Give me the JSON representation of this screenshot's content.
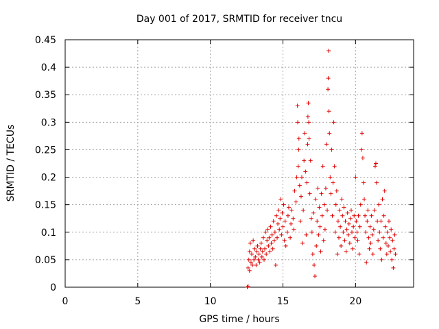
{
  "chart_data": {
    "type": "scatter",
    "title": "Day 001 of 2017, SRMTID for receiver tncu",
    "xlabel": "GPS time / hours",
    "ylabel": "SRMTID / TECUs",
    "xlim": [
      0,
      24
    ],
    "ylim": [
      0,
      0.45
    ],
    "grid": true,
    "marker": "+",
    "color": "#e00000",
    "x_ticks": [
      {
        "value": 0,
        "label": "0"
      },
      {
        "value": 5,
        "label": "5"
      },
      {
        "value": 10,
        "label": "10"
      },
      {
        "value": 15,
        "label": "15"
      },
      {
        "value": 20,
        "label": "20"
      }
    ],
    "y_ticks": [
      {
        "value": 0,
        "label": "0"
      },
      {
        "value": 0.05,
        "label": "0.05"
      },
      {
        "value": 0.1,
        "label": "0.1"
      },
      {
        "value": 0.15,
        "label": "0.15"
      },
      {
        "value": 0.2,
        "label": "0.2"
      },
      {
        "value": 0.25,
        "label": "0.25"
      },
      {
        "value": 0.3,
        "label": "0.3"
      },
      {
        "value": 0.35,
        "label": "0.35"
      },
      {
        "value": 0.4,
        "label": "0.4"
      },
      {
        "value": 0.45,
        "label": "0.45"
      }
    ],
    "points": [
      [
        12.55,
        0.0
      ],
      [
        12.6,
        0.002
      ],
      [
        12.6,
        0.035
      ],
      [
        12.65,
        0.05
      ],
      [
        12.7,
        0.065
      ],
      [
        12.7,
        0.03
      ],
      [
        12.75,
        0.08
      ],
      [
        12.8,
        0.045
      ],
      [
        12.85,
        0.06
      ],
      [
        12.9,
        0.04
      ],
      [
        12.95,
        0.085
      ],
      [
        13.0,
        0.05
      ],
      [
        13.05,
        0.07
      ],
      [
        13.1,
        0.055
      ],
      [
        13.15,
        0.04
      ],
      [
        13.2,
        0.065
      ],
      [
        13.25,
        0.075
      ],
      [
        13.3,
        0.05
      ],
      [
        13.35,
        0.06
      ],
      [
        13.4,
        0.045
      ],
      [
        13.45,
        0.07
      ],
      [
        13.5,
        0.08
      ],
      [
        13.55,
        0.055
      ],
      [
        13.6,
        0.065
      ],
      [
        13.65,
        0.09
      ],
      [
        13.7,
        0.05
      ],
      [
        13.75,
        0.07
      ],
      [
        13.8,
        0.1
      ],
      [
        13.85,
        0.06
      ],
      [
        13.9,
        0.085
      ],
      [
        13.95,
        0.105
      ],
      [
        14.0,
        0.075
      ],
      [
        14.05,
        0.09
      ],
      [
        14.1,
        0.065
      ],
      [
        14.15,
        0.11
      ],
      [
        14.2,
        0.08
      ],
      [
        14.25,
        0.095
      ],
      [
        14.3,
        0.07
      ],
      [
        14.35,
        0.12
      ],
      [
        14.4,
        0.085
      ],
      [
        14.45,
        0.1
      ],
      [
        14.5,
        0.04
      ],
      [
        14.55,
        0.13
      ],
      [
        14.6,
        0.09
      ],
      [
        14.65,
        0.115
      ],
      [
        14.7,
        0.14
      ],
      [
        14.75,
        0.105
      ],
      [
        14.8,
        0.125
      ],
      [
        14.85,
        0.16
      ],
      [
        14.9,
        0.095
      ],
      [
        14.95,
        0.135
      ],
      [
        15.0,
        0.11
      ],
      [
        15.05,
        0.15
      ],
      [
        15.1,
        0.085
      ],
      [
        15.15,
        0.12
      ],
      [
        15.2,
        0.075
      ],
      [
        15.3,
        0.1
      ],
      [
        15.35,
        0.13
      ],
      [
        15.4,
        0.145
      ],
      [
        15.5,
        0.09
      ],
      [
        15.55,
        0.115
      ],
      [
        15.6,
        0.14
      ],
      [
        15.7,
        0.125
      ],
      [
        15.75,
        0.105
      ],
      [
        15.8,
        0.175
      ],
      [
        15.9,
        0.155
      ],
      [
        15.95,
        0.2
      ],
      [
        16.0,
        0.33
      ],
      [
        16.02,
        0.3
      ],
      [
        16.05,
        0.22
      ],
      [
        16.08,
        0.25
      ],
      [
        16.1,
        0.27
      ],
      [
        16.15,
        0.185
      ],
      [
        16.2,
        0.12
      ],
      [
        16.25,
        0.165
      ],
      [
        16.3,
        0.2
      ],
      [
        16.35,
        0.08
      ],
      [
        16.4,
        0.14
      ],
      [
        16.45,
        0.23
      ],
      [
        16.5,
        0.28
      ],
      [
        16.55,
        0.21
      ],
      [
        16.6,
        0.095
      ],
      [
        16.65,
        0.19
      ],
      [
        16.7,
        0.26
      ],
      [
        16.72,
        0.31
      ],
      [
        16.75,
        0.335
      ],
      [
        16.78,
        0.3
      ],
      [
        16.8,
        0.27
      ],
      [
        16.85,
        0.17
      ],
      [
        16.9,
        0.23
      ],
      [
        16.95,
        0.125
      ],
      [
        17.0,
        0.1
      ],
      [
        17.05,
        0.06
      ],
      [
        17.1,
        0.135
      ],
      [
        17.15,
        0.04
      ],
      [
        17.2,
        0.02
      ],
      [
        17.25,
        0.16
      ],
      [
        17.3,
        0.075
      ],
      [
        17.35,
        0.12
      ],
      [
        17.4,
        0.18
      ],
      [
        17.45,
        0.095
      ],
      [
        17.5,
        0.145
      ],
      [
        17.55,
        0.11
      ],
      [
        17.6,
        0.065
      ],
      [
        17.65,
        0.17
      ],
      [
        17.7,
        0.13
      ],
      [
        17.75,
        0.22
      ],
      [
        17.8,
        0.085
      ],
      [
        17.85,
        0.15
      ],
      [
        17.9,
        0.105
      ],
      [
        17.95,
        0.18
      ],
      [
        18.0,
        0.26
      ],
      [
        18.05,
        0.14
      ],
      [
        18.1,
        0.36
      ],
      [
        18.12,
        0.38
      ],
      [
        18.15,
        0.43
      ],
      [
        18.17,
        0.32
      ],
      [
        18.2,
        0.28
      ],
      [
        18.25,
        0.2
      ],
      [
        18.3,
        0.17
      ],
      [
        18.35,
        0.25
      ],
      [
        18.4,
        0.13
      ],
      [
        18.45,
        0.19
      ],
      [
        18.5,
        0.3
      ],
      [
        18.55,
        0.22
      ],
      [
        18.6,
        0.1
      ],
      [
        18.65,
        0.15
      ],
      [
        18.7,
        0.175
      ],
      [
        18.75,
        0.06
      ],
      [
        18.8,
        0.12
      ],
      [
        18.85,
        0.09
      ],
      [
        18.9,
        0.14
      ],
      [
        18.95,
        0.11
      ],
      [
        19.0,
        0.075
      ],
      [
        19.05,
        0.16
      ],
      [
        19.1,
        0.13
      ],
      [
        19.15,
        0.1
      ],
      [
        19.2,
        0.145
      ],
      [
        19.25,
        0.085
      ],
      [
        19.3,
        0.12
      ],
      [
        19.35,
        0.065
      ],
      [
        19.4,
        0.105
      ],
      [
        19.45,
        0.135
      ],
      [
        19.5,
        0.095
      ],
      [
        19.55,
        0.115
      ],
      [
        19.6,
        0.08
      ],
      [
        19.65,
        0.125
      ],
      [
        19.7,
        0.14
      ],
      [
        19.75,
        0.1
      ],
      [
        19.8,
        0.07
      ],
      [
        19.85,
        0.11
      ],
      [
        19.9,
        0.13
      ],
      [
        19.95,
        0.09
      ],
      [
        20.0,
        0.2
      ],
      [
        20.05,
        0.12
      ],
      [
        20.1,
        0.1
      ],
      [
        20.15,
        0.085
      ],
      [
        20.2,
        0.13
      ],
      [
        20.25,
        0.06
      ],
      [
        20.3,
        0.11
      ],
      [
        20.35,
        0.15
      ],
      [
        20.4,
        0.25
      ],
      [
        20.45,
        0.28
      ],
      [
        20.5,
        0.235
      ],
      [
        20.55,
        0.19
      ],
      [
        20.6,
        0.16
      ],
      [
        20.65,
        0.13
      ],
      [
        20.7,
        0.1
      ],
      [
        20.75,
        0.045
      ],
      [
        20.8,
        0.12
      ],
      [
        20.85,
        0.14
      ],
      [
        20.9,
        0.09
      ],
      [
        20.95,
        0.07
      ],
      [
        21.0,
        0.11
      ],
      [
        21.05,
        0.08
      ],
      [
        21.1,
        0.13
      ],
      [
        21.15,
        0.095
      ],
      [
        21.2,
        0.06
      ],
      [
        21.25,
        0.105
      ],
      [
        21.3,
        0.14
      ],
      [
        21.35,
        0.22
      ],
      [
        21.4,
        0.225
      ],
      [
        21.45,
        0.19
      ],
      [
        21.5,
        0.12
      ],
      [
        21.55,
        0.085
      ],
      [
        21.6,
        0.15
      ],
      [
        21.65,
        0.1
      ],
      [
        21.7,
        0.07
      ],
      [
        21.75,
        0.12
      ],
      [
        21.8,
        0.05
      ],
      [
        21.85,
        0.16
      ],
      [
        21.9,
        0.09
      ],
      [
        21.95,
        0.13
      ],
      [
        22.0,
        0.175
      ],
      [
        22.05,
        0.11
      ],
      [
        22.1,
        0.08
      ],
      [
        22.15,
        0.06
      ],
      [
        22.2,
        0.1
      ],
      [
        22.25,
        0.075
      ],
      [
        22.3,
        0.12
      ],
      [
        22.35,
        0.09
      ],
      [
        22.4,
        0.065
      ],
      [
        22.45,
        0.105
      ],
      [
        22.5,
        0.05
      ],
      [
        22.55,
        0.085
      ],
      [
        22.6,
        0.035
      ],
      [
        22.65,
        0.07
      ],
      [
        22.7,
        0.095
      ],
      [
        22.75,
        0.06
      ]
    ]
  }
}
